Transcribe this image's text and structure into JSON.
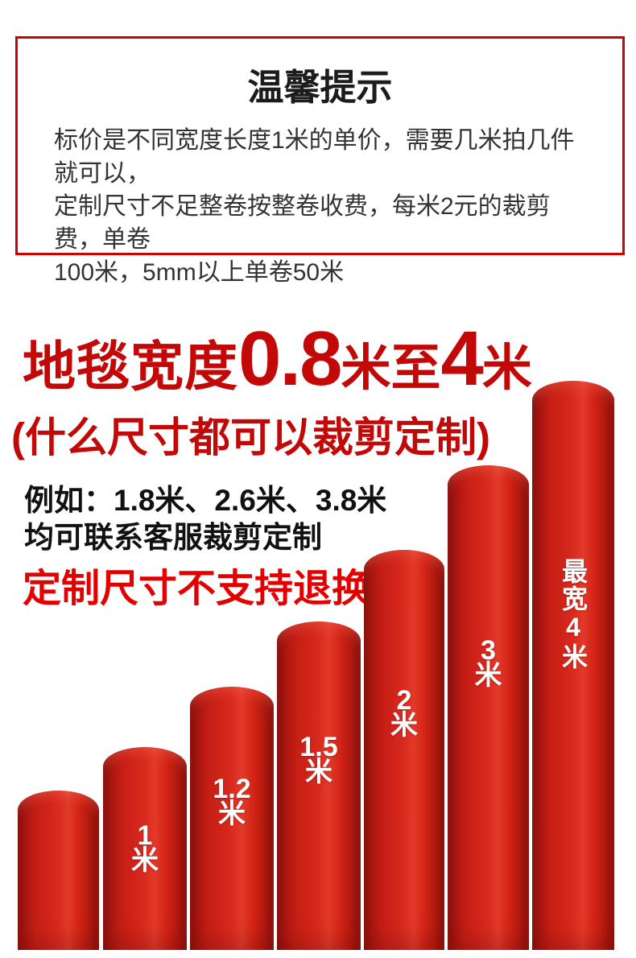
{
  "notice_box": {
    "title": "温馨提示",
    "lines": [
      "标价是不同宽度长度1米的单价，需要几米拍几件就可以，",
      "定制尺寸不足整卷按整卷收费，每米2元的裁剪费，单卷",
      "100米，5mm以上单卷50米"
    ]
  },
  "headline": {
    "prefix": "地毯宽度",
    "min_width": "0.8",
    "middle": "米至",
    "max_width": "4",
    "unit": "米",
    "subtitle": "(什么尺寸都可以裁剪定制)",
    "example_line1": "例如：1.8米、2.6米、3.8米",
    "example_line2": "均可联系客服裁剪定制",
    "warning": "定制尺寸不支持退换货"
  },
  "rolls": [
    {
      "number": "",
      "unit": ""
    },
    {
      "number": "1",
      "unit": "米"
    },
    {
      "number": "1.2",
      "unit": "米"
    },
    {
      "number": "1.5",
      "unit": "米"
    },
    {
      "number": "2",
      "unit": "米"
    },
    {
      "number": "3",
      "unit": "米"
    },
    {
      "vertical_label": "最宽4米"
    }
  ],
  "colors": {
    "accent_red": "#c30808",
    "warning_red": "#e30000",
    "border_red": "#d10000",
    "roll_red": "#d1241a",
    "label_white": "#ffffff",
    "body_text": "#333333"
  }
}
